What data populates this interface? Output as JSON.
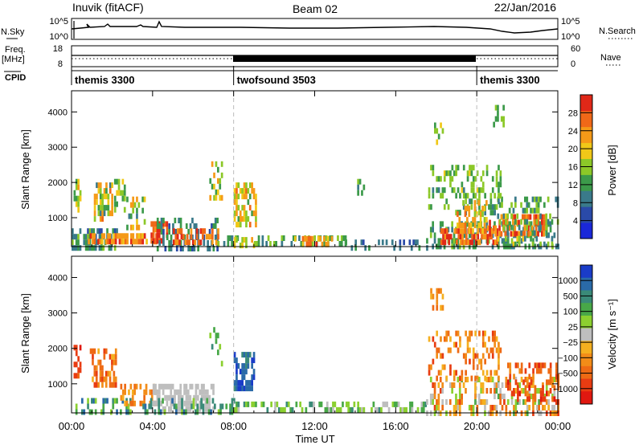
{
  "header": {
    "station": "Inuvik (fitACF)",
    "beam": "Beam 02",
    "date": "22/Jan/2016"
  },
  "nsky_panel": {
    "left_label": "N.Sky",
    "right_label": "N.Search",
    "left_ticks": [
      "10^5",
      "10^0"
    ],
    "right_ticks": [
      "10^5",
      "10^0"
    ]
  },
  "freq_panel": {
    "left_label_line1": "Freq.",
    "left_label_line2": "[MHz]",
    "right_label": "Nave",
    "left_ticks": [
      "18",
      "8"
    ],
    "right_ticks": [
      "60",
      "0"
    ]
  },
  "cpid": {
    "label": "CPID",
    "segments": [
      {
        "name": "themis 3300",
        "start_h": 0,
        "end_h": 8
      },
      {
        "name": "twofsound 3503",
        "start_h": 8,
        "end_h": 20
      },
      {
        "name": "themis 3300",
        "start_h": 20,
        "end_h": 24
      }
    ]
  },
  "colors": {
    "dashed_marker": "#bbbbbb",
    "ground_scatter": "#bebebe",
    "power_scale": [
      "#1a28d8",
      "#2a4aa8",
      "#3a7a8a",
      "#3c9a4a",
      "#8cc828",
      "#f0c818",
      "#f59a18",
      "#f06818",
      "#e02818"
    ],
    "velocity_scale": [
      "#1a3cc8",
      "#2a6aa8",
      "#3a8a78",
      "#48a848",
      "#8cd030",
      "#bebebe",
      "#f5b020",
      "#f28c18",
      "#ee6a14",
      "#e83c12",
      "#e01810"
    ]
  },
  "chart_data": [
    {
      "type": "heatmap",
      "name": "power",
      "xlabel": "",
      "ylabel": "Slant Range [km]",
      "xlim": [
        0,
        24
      ],
      "ylim": [
        180,
        4600
      ],
      "x_ticks": [
        0,
        4,
        8,
        12,
        16,
        20,
        24
      ],
      "y_ticks": [
        1000,
        2000,
        3000,
        4000
      ],
      "colorbar": {
        "label": "Power [dB]",
        "range": [
          0,
          32
        ],
        "ticks": [
          4,
          8,
          12,
          16,
          20,
          24,
          28
        ]
      },
      "markers_h": [
        8,
        20
      ],
      "regions": [
        {
          "t": [
            0,
            2.2
          ],
          "r": [
            200,
            700
          ],
          "v": [
            6,
            16
          ],
          "d": 0.55
        },
        {
          "t": [
            0.8,
            4.2
          ],
          "r": [
            250,
            560
          ],
          "v": [
            20,
            30
          ],
          "d": 0.6
        },
        {
          "t": [
            3.9,
            4.7
          ],
          "r": [
            300,
            900
          ],
          "v": [
            24,
            32
          ],
          "d": 0.8
        },
        {
          "t": [
            4.2,
            7.2
          ],
          "r": [
            200,
            1000
          ],
          "v": [
            6,
            14
          ],
          "d": 0.45
        },
        {
          "t": [
            5.0,
            7.2
          ],
          "r": [
            300,
            700
          ],
          "v": [
            22,
            31
          ],
          "d": 0.6
        },
        {
          "t": [
            7.2,
            8.2
          ],
          "r": [
            200,
            500
          ],
          "v": [
            8,
            16
          ],
          "d": 0.4
        },
        {
          "t": [
            8.0,
            9.0
          ],
          "r": [
            200,
            450
          ],
          "v": [
            14,
            22
          ],
          "d": 0.5
        },
        {
          "t": [
            9.0,
            13.5
          ],
          "r": [
            200,
            500
          ],
          "v": [
            8,
            16
          ],
          "d": 0.45
        },
        {
          "t": [
            10.8,
            12.8
          ],
          "r": [
            250,
            480
          ],
          "v": [
            20,
            30
          ],
          "d": 0.55
        },
        {
          "t": [
            13.5,
            17.5
          ],
          "r": [
            200,
            380
          ],
          "v": [
            4,
            12
          ],
          "d": 0.35
        },
        {
          "t": [
            17.5,
            24
          ],
          "r": [
            200,
            900
          ],
          "v": [
            8,
            16
          ],
          "d": 0.4
        },
        {
          "t": [
            18.2,
            21.0
          ],
          "r": [
            300,
            700
          ],
          "v": [
            22,
            32
          ],
          "d": 0.65
        },
        {
          "t": [
            20.5,
            23.5
          ],
          "r": [
            550,
            1100
          ],
          "v": [
            22,
            31
          ],
          "d": 0.55
        },
        {
          "t": [
            21.0,
            24
          ],
          "r": [
            200,
            1600
          ],
          "v": [
            8,
            18
          ],
          "d": 0.3
        },
        {
          "t": [
            17.6,
            21.2
          ],
          "r": [
            1200,
            2500
          ],
          "v": [
            10,
            18
          ],
          "d": 0.3
        },
        {
          "t": [
            0.1,
            0.4
          ],
          "r": [
            1300,
            2100
          ],
          "v": [
            12,
            22
          ],
          "d": 0.6
        },
        {
          "t": [
            1.1,
            2.0
          ],
          "r": [
            900,
            2000
          ],
          "v": [
            10,
            26
          ],
          "d": 0.55
        },
        {
          "t": [
            2.1,
            2.6
          ],
          "r": [
            1300,
            2100
          ],
          "v": [
            10,
            20
          ],
          "d": 0.5
        },
        {
          "t": [
            2.7,
            3.6
          ],
          "r": [
            700,
            1600
          ],
          "v": [
            10,
            24
          ],
          "d": 0.4
        },
        {
          "t": [
            8.0,
            9.1
          ],
          "r": [
            800,
            2000
          ],
          "v": [
            12,
            26
          ],
          "d": 0.55
        },
        {
          "t": [
            19.0,
            20.5
          ],
          "r": [
            700,
            1500
          ],
          "v": [
            16,
            28
          ],
          "d": 0.4
        },
        {
          "t": [
            6.8,
            7.4
          ],
          "r": [
            1500,
            2600
          ],
          "v": [
            12,
            24
          ],
          "d": 0.4
        },
        {
          "t": [
            14.0,
            14.4
          ],
          "r": [
            1700,
            2100
          ],
          "v": [
            10,
            16
          ],
          "d": 0.4
        },
        {
          "t": [
            17.7,
            18.3
          ],
          "r": [
            3100,
            3700
          ],
          "v": [
            12,
            20
          ],
          "d": 0.4
        },
        {
          "t": [
            20.8,
            21.3
          ],
          "r": [
            3600,
            4200
          ],
          "v": [
            10,
            18
          ],
          "d": 0.35
        }
      ]
    },
    {
      "type": "heatmap",
      "name": "velocity",
      "xlabel": "Time UT",
      "ylabel": "Slant Range [km]",
      "xlim": [
        0,
        24
      ],
      "ylim": [
        180,
        4600
      ],
      "x_ticks": [
        0,
        4,
        8,
        12,
        16,
        20,
        24
      ],
      "x_tick_labels": [
        "00:00",
        "04:00",
        "08:00",
        "12:00",
        "16:00",
        "20:00",
        "00:00"
      ],
      "y_ticks": [
        1000,
        2000,
        3000,
        4000
      ],
      "colorbar": {
        "label": "Velocity [m s⁻¹]",
        "ticks": [
          "1000",
          "500",
          "100",
          "25",
          "−25",
          "−100",
          "−500",
          "−1000"
        ]
      },
      "markers_h": [
        8,
        20
      ],
      "regions": [
        {
          "t": [
            0,
            3.0
          ],
          "r": [
            200,
            600
          ],
          "v": [
            1,
            4
          ],
          "d": 0.4
        },
        {
          "t": [
            0.1,
            0.4
          ],
          "r": [
            1300,
            2100
          ],
          "v": [
            8,
            10
          ],
          "d": 0.6
        },
        {
          "t": [
            0.9,
            2.2
          ],
          "r": [
            900,
            2000
          ],
          "v": [
            6,
            9
          ],
          "d": 0.5
        },
        {
          "t": [
            2.4,
            4.2
          ],
          "r": [
            400,
            1000
          ],
          "v": [
            6,
            8
          ],
          "d": 0.5
        },
        {
          "t": [
            4.0,
            7.0
          ],
          "r": [
            300,
            1000
          ],
          "v": [
            5,
            5
          ],
          "d": 0.55
        },
        {
          "t": [
            3.5,
            8.0
          ],
          "r": [
            200,
            600
          ],
          "v": [
            1,
            4
          ],
          "d": 0.35
        },
        {
          "t": [
            8.0,
            9.0
          ],
          "r": [
            900,
            1900
          ],
          "v": [
            0,
            2
          ],
          "d": 0.6
        },
        {
          "t": [
            8.0,
            17.5
          ],
          "r": [
            200,
            500
          ],
          "v": [
            2,
            5
          ],
          "d": 0.4
        },
        {
          "t": [
            17.5,
            24
          ],
          "r": [
            200,
            1200
          ],
          "v": [
            3,
            9
          ],
          "d": 0.4
        },
        {
          "t": [
            17.6,
            21.2
          ],
          "r": [
            1200,
            2500
          ],
          "v": [
            6,
            9
          ],
          "d": 0.3
        },
        {
          "t": [
            21.5,
            24
          ],
          "r": [
            600,
            1600
          ],
          "v": [
            7,
            10
          ],
          "d": 0.35
        },
        {
          "t": [
            6.8,
            7.4
          ],
          "r": [
            1500,
            2600
          ],
          "v": [
            2,
            4
          ],
          "d": 0.35
        },
        {
          "t": [
            17.7,
            18.3
          ],
          "r": [
            3100,
            3700
          ],
          "v": [
            6,
            8
          ],
          "d": 0.4
        }
      ]
    }
  ]
}
